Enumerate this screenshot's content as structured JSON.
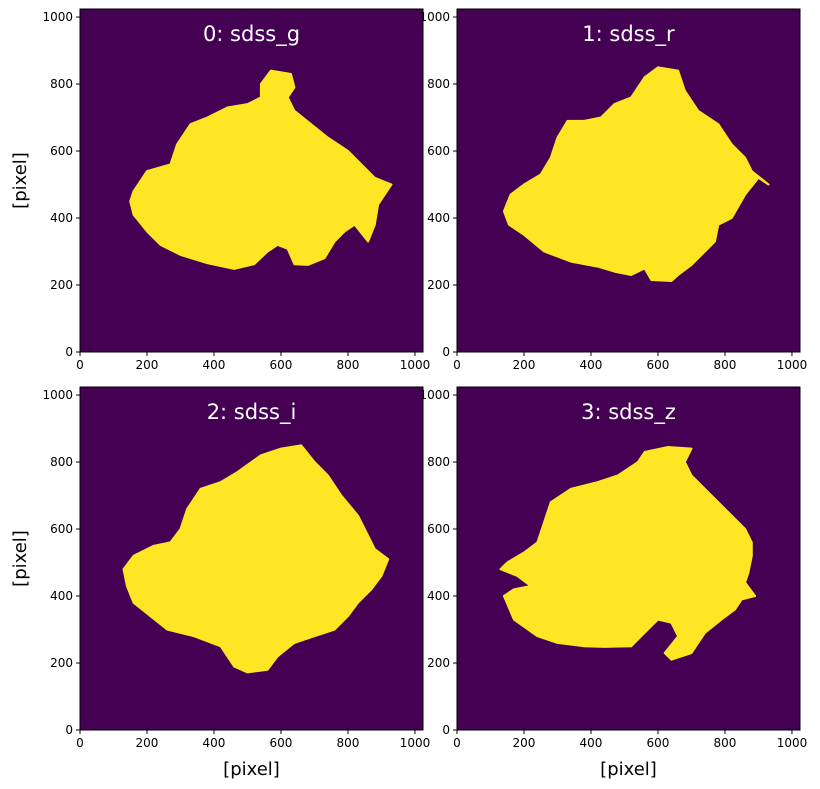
{
  "chart_data": [
    {
      "type": "heatmap",
      "panel_title": "0: sdss_g",
      "xlabel": "",
      "ylabel": "[pixel]",
      "xlim": [
        0,
        1024
      ],
      "ylim": [
        0,
        1024
      ],
      "xticks": [
        "0",
        "200",
        "400",
        "600",
        "800",
        "1000"
      ],
      "yticks": [
        "0",
        "200",
        "400",
        "600",
        "800",
        "1000"
      ],
      "outline": [
        [
          150,
          450
        ],
        [
          160,
          410
        ],
        [
          200,
          360
        ],
        [
          240,
          320
        ],
        [
          300,
          290
        ],
        [
          380,
          265
        ],
        [
          460,
          248
        ],
        [
          520,
          262
        ],
        [
          560,
          300
        ],
        [
          590,
          320
        ],
        [
          620,
          308
        ],
        [
          640,
          262
        ],
        [
          680,
          260
        ],
        [
          730,
          280
        ],
        [
          760,
          330
        ],
        [
          790,
          360
        ],
        [
          820,
          380
        ],
        [
          860,
          330
        ],
        [
          880,
          380
        ],
        [
          890,
          440
        ],
        [
          930,
          500
        ],
        [
          880,
          520
        ],
        [
          840,
          560
        ],
        [
          800,
          600
        ],
        [
          740,
          640
        ],
        [
          690,
          680
        ],
        [
          640,
          720
        ],
        [
          620,
          760
        ],
        [
          640,
          790
        ],
        [
          630,
          830
        ],
        [
          570,
          840
        ],
        [
          540,
          800
        ],
        [
          540,
          760
        ],
        [
          500,
          740
        ],
        [
          440,
          730
        ],
        [
          380,
          700
        ],
        [
          330,
          680
        ],
        [
          290,
          620
        ],
        [
          270,
          560
        ],
        [
          200,
          540
        ],
        [
          180,
          510
        ],
        [
          160,
          480
        ]
      ]
    },
    {
      "type": "heatmap",
      "panel_title": "1: sdss_r",
      "xlabel": "",
      "ylabel": "",
      "xlim": [
        0,
        1024
      ],
      "ylim": [
        0,
        1024
      ],
      "xticks": [
        "0",
        "200",
        "400",
        "600",
        "800",
        "1000"
      ],
      "yticks": [
        "0",
        "200",
        "400",
        "600",
        "800",
        "1000"
      ],
      "outline": [
        [
          140,
          420
        ],
        [
          155,
          380
        ],
        [
          200,
          350
        ],
        [
          260,
          300
        ],
        [
          340,
          270
        ],
        [
          420,
          255
        ],
        [
          470,
          240
        ],
        [
          520,
          230
        ],
        [
          560,
          250
        ],
        [
          580,
          215
        ],
        [
          640,
          212
        ],
        [
          660,
          230
        ],
        [
          700,
          260
        ],
        [
          740,
          300
        ],
        [
          770,
          330
        ],
        [
          780,
          380
        ],
        [
          820,
          400
        ],
        [
          860,
          470
        ],
        [
          900,
          520
        ],
        [
          930,
          500
        ],
        [
          880,
          540
        ],
        [
          860,
          580
        ],
        [
          820,
          620
        ],
        [
          780,
          680
        ],
        [
          720,
          720
        ],
        [
          680,
          780
        ],
        [
          660,
          840
        ],
        [
          600,
          850
        ],
        [
          560,
          820
        ],
        [
          520,
          760
        ],
        [
          470,
          740
        ],
        [
          430,
          700
        ],
        [
          380,
          690
        ],
        [
          330,
          690
        ],
        [
          300,
          640
        ],
        [
          280,
          580
        ],
        [
          250,
          530
        ],
        [
          200,
          500
        ],
        [
          160,
          470
        ]
      ]
    },
    {
      "type": "heatmap",
      "panel_title": "2: sdss_i",
      "xlabel": "[pixel]",
      "ylabel": "[pixel]",
      "xlim": [
        0,
        1024
      ],
      "ylim": [
        0,
        1024
      ],
      "xticks": [
        "0",
        "200",
        "400",
        "600",
        "800",
        "1000"
      ],
      "yticks": [
        "0",
        "200",
        "400",
        "600",
        "800",
        "1000"
      ],
      "outline": [
        [
          140,
          430
        ],
        [
          160,
          380
        ],
        [
          210,
          340
        ],
        [
          260,
          300
        ],
        [
          340,
          280
        ],
        [
          420,
          250
        ],
        [
          460,
          190
        ],
        [
          500,
          172
        ],
        [
          560,
          180
        ],
        [
          590,
          220
        ],
        [
          640,
          260
        ],
        [
          700,
          280
        ],
        [
          760,
          300
        ],
        [
          800,
          340
        ],
        [
          830,
          380
        ],
        [
          870,
          420
        ],
        [
          900,
          460
        ],
        [
          920,
          510
        ],
        [
          880,
          540
        ],
        [
          860,
          580
        ],
        [
          830,
          640
        ],
        [
          780,
          700
        ],
        [
          740,
          760
        ],
        [
          700,
          800
        ],
        [
          660,
          850
        ],
        [
          600,
          840
        ],
        [
          540,
          820
        ],
        [
          470,
          770
        ],
        [
          420,
          740
        ],
        [
          360,
          720
        ],
        [
          320,
          660
        ],
        [
          300,
          600
        ],
        [
          270,
          560
        ],
        [
          220,
          550
        ],
        [
          160,
          520
        ],
        [
          130,
          480
        ]
      ]
    },
    {
      "type": "heatmap",
      "panel_title": "3: sdss_z",
      "xlabel": "[pixel]",
      "ylabel": "",
      "xlim": [
        0,
        1024
      ],
      "ylim": [
        0,
        1024
      ],
      "xticks": [
        "0",
        "200",
        "400",
        "600",
        "800",
        "1000"
      ],
      "yticks": [
        "0",
        "200",
        "400",
        "600",
        "800",
        "1000"
      ],
      "outline": [
        [
          140,
          400
        ],
        [
          170,
          330
        ],
        [
          240,
          280
        ],
        [
          300,
          260
        ],
        [
          380,
          250
        ],
        [
          440,
          248
        ],
        [
          520,
          250
        ],
        [
          570,
          300
        ],
        [
          600,
          330
        ],
        [
          640,
          320
        ],
        [
          660,
          280
        ],
        [
          620,
          230
        ],
        [
          640,
          210
        ],
        [
          700,
          230
        ],
        [
          740,
          290
        ],
        [
          790,
          330
        ],
        [
          830,
          360
        ],
        [
          850,
          390
        ],
        [
          890,
          400
        ],
        [
          860,
          440
        ],
        [
          870,
          470
        ],
        [
          880,
          520
        ],
        [
          880,
          560
        ],
        [
          860,
          600
        ],
        [
          820,
          640
        ],
        [
          780,
          680
        ],
        [
          740,
          720
        ],
        [
          700,
          760
        ],
        [
          680,
          800
        ],
        [
          700,
          840
        ],
        [
          630,
          845
        ],
        [
          560,
          830
        ],
        [
          540,
          800
        ],
        [
          480,
          760
        ],
        [
          420,
          740
        ],
        [
          340,
          720
        ],
        [
          280,
          680
        ],
        [
          260,
          620
        ],
        [
          240,
          560
        ],
        [
          200,
          530
        ],
        [
          150,
          500
        ],
        [
          130,
          480
        ],
        [
          180,
          460
        ],
        [
          220,
          430
        ],
        [
          170,
          420
        ]
      ]
    }
  ],
  "colors": {
    "background": "#440154",
    "mask": "#fde725",
    "panel_title": "#ffffff",
    "axis": "#000000"
  }
}
